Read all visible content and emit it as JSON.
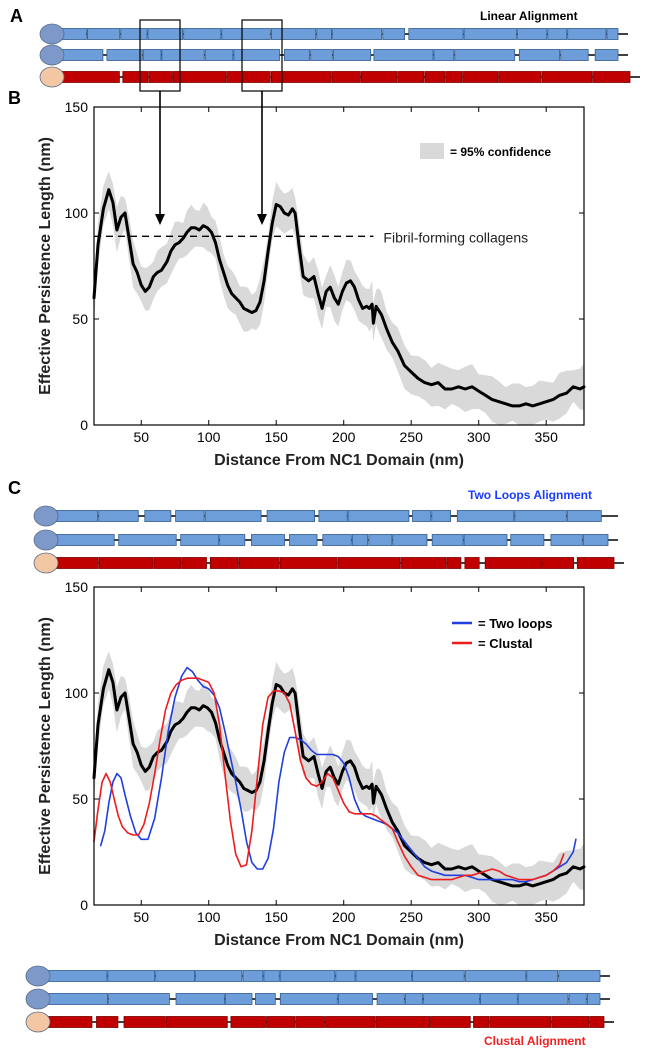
{
  "colors": {
    "blue_fill": "#6d9eda",
    "blue_stroke": "#2f5c8f",
    "red_fill": "#c00000",
    "red_stroke": "#7a0000",
    "oval_blue": "#7c99c9",
    "oval_peach": "#f4c7a4",
    "mean_line": "#000000",
    "ci_band": "#d9d9d9",
    "two_loops": "#1f3fe0",
    "clustal": "#ee1c1c",
    "two_loops_title": "#1a3cff",
    "clustal_title": "#ee2222"
  },
  "panels": {
    "A": "A",
    "B": "B",
    "C": "C"
  },
  "alignments": {
    "linear_title": "Linear Alignment",
    "two_loops_title": "Two Loops Alignment",
    "clustal_title": "Clustal Alignment"
  },
  "chart_data": [
    {
      "type": "line",
      "panel": "B",
      "xlabel": "Distance From NC1 Domain (nm)",
      "ylabel": "Effective Persistence Length (nm)",
      "xlim": [
        15,
        378
      ],
      "ylim": [
        0,
        150
      ],
      "xticks": [
        50,
        100,
        150,
        200,
        250,
        300,
        350
      ],
      "yticks": [
        0,
        50,
        100,
        150
      ],
      "legend": {
        "label": "= 95% confidence",
        "placement": "top-right"
      },
      "reference_line": {
        "y": 89,
        "x": [
          15,
          222
        ],
        "label": "Fibril-forming collagens"
      },
      "series": [
        {
          "x": [
            15,
            18,
            22,
            26,
            29,
            32,
            35,
            38,
            41,
            44,
            47,
            50,
            53,
            56,
            59,
            62,
            65,
            69,
            72,
            75,
            78,
            81,
            84,
            87,
            90,
            93,
            96,
            99,
            102,
            105,
            108,
            111,
            114,
            117,
            120,
            123,
            126,
            129,
            132,
            135,
            138,
            141,
            144,
            147,
            150,
            153,
            156,
            159,
            162,
            164,
            167,
            170,
            174,
            178,
            181,
            184,
            187,
            190,
            193,
            196,
            199,
            202,
            205,
            208,
            211,
            214,
            217,
            219,
            221,
            222,
            224,
            226,
            228,
            232,
            236,
            240,
            245,
            250,
            255,
            260,
            265,
            270,
            275,
            280,
            285,
            290,
            295,
            300,
            305,
            310,
            315,
            320,
            325,
            330,
            335,
            340,
            345,
            350,
            355,
            360,
            365,
            370,
            375,
            378
          ],
          "values": [
            60,
            85,
            102,
            111,
            105,
            92,
            98,
            100,
            88,
            76,
            72,
            66,
            63,
            65,
            70,
            72,
            73,
            77,
            82,
            85,
            86,
            88,
            91,
            93,
            93,
            92,
            94,
            93,
            91,
            86,
            78,
            72,
            66,
            62,
            60,
            58,
            55,
            54,
            53,
            54,
            58,
            68,
            82,
            95,
            104,
            103,
            100,
            99,
            102,
            100,
            84,
            70,
            68,
            70,
            62,
            55,
            63,
            65,
            60,
            57,
            63,
            67,
            68,
            65,
            59,
            55,
            56,
            55,
            57,
            48,
            56,
            54,
            52,
            45,
            39,
            35,
            28,
            25,
            22,
            20,
            19,
            20,
            17,
            17,
            18,
            17,
            18,
            16,
            14,
            12,
            11,
            10,
            9,
            9,
            10,
            9,
            10,
            11,
            12,
            14,
            15,
            18,
            17,
            18
          ]
        }
      ]
    },
    {
      "type": "line",
      "panel": "C",
      "xlabel": "Distance From NC1 Domain (nm)",
      "ylabel": "Effective Persistence Length (nm)",
      "xlim": [
        15,
        378
      ],
      "ylim": [
        0,
        150
      ],
      "xticks": [
        50,
        100,
        150,
        200,
        250,
        300,
        350
      ],
      "yticks": [
        0,
        50,
        100,
        150
      ],
      "legend": {
        "placement": "top-right",
        "entries": [
          "= Two loops",
          "= Clustal"
        ]
      },
      "series": [
        {
          "style": "mean_with_ci",
          "x": [
            15,
            18,
            22,
            26,
            29,
            32,
            35,
            38,
            41,
            44,
            47,
            50,
            53,
            56,
            59,
            62,
            65,
            69,
            72,
            75,
            78,
            81,
            84,
            87,
            90,
            93,
            96,
            99,
            102,
            105,
            108,
            111,
            114,
            117,
            120,
            123,
            126,
            129,
            132,
            135,
            138,
            141,
            144,
            147,
            150,
            153,
            156,
            159,
            162,
            164,
            167,
            170,
            174,
            178,
            181,
            184,
            187,
            190,
            193,
            196,
            199,
            202,
            205,
            208,
            211,
            214,
            217,
            219,
            221,
            222,
            224,
            226,
            228,
            232,
            236,
            240,
            245,
            250,
            255,
            260,
            265,
            270,
            275,
            280,
            285,
            290,
            295,
            300,
            305,
            310,
            315,
            320,
            325,
            330,
            335,
            340,
            345,
            350,
            355,
            360,
            365,
            370,
            375,
            378
          ],
          "values": [
            60,
            85,
            102,
            111,
            105,
            92,
            98,
            100,
            88,
            76,
            72,
            66,
            63,
            65,
            70,
            72,
            73,
            77,
            82,
            85,
            86,
            88,
            91,
            93,
            93,
            92,
            94,
            93,
            91,
            86,
            78,
            72,
            66,
            62,
            60,
            58,
            55,
            54,
            53,
            54,
            58,
            68,
            82,
            95,
            104,
            103,
            100,
            99,
            102,
            100,
            84,
            70,
            68,
            70,
            62,
            55,
            63,
            65,
            60,
            57,
            63,
            67,
            68,
            65,
            59,
            55,
            56,
            55,
            57,
            48,
            56,
            54,
            52,
            45,
            39,
            35,
            28,
            25,
            22,
            20,
            19,
            20,
            17,
            17,
            18,
            17,
            18,
            16,
            14,
            12,
            11,
            10,
            9,
            9,
            10,
            9,
            10,
            11,
            12,
            14,
            15,
            18,
            17,
            18
          ]
        },
        {
          "name": "Two loops",
          "color_key": "two_loops",
          "x": [
            20,
            23,
            26,
            29,
            32,
            35,
            38,
            42,
            46,
            50,
            55,
            60,
            65,
            70,
            75,
            80,
            84,
            88,
            92,
            96,
            100,
            104,
            108,
            112,
            116,
            120,
            124,
            128,
            132,
            136,
            140,
            144,
            148,
            152,
            156,
            160,
            164,
            168,
            172,
            176,
            180,
            184,
            188,
            192,
            196,
            200,
            204,
            208,
            212,
            216,
            220,
            224,
            228,
            232,
            236,
            240,
            245,
            250,
            255,
            260,
            265,
            270,
            275,
            280,
            285,
            290,
            295,
            300,
            305,
            310,
            315,
            320,
            325,
            330,
            335,
            340,
            345,
            350,
            355,
            360,
            365,
            370,
            372
          ],
          "values": [
            28,
            35,
            48,
            58,
            62,
            60,
            52,
            42,
            34,
            31,
            31,
            41,
            60,
            82,
            98,
            108,
            112,
            110,
            106,
            103,
            102,
            99,
            93,
            82,
            70,
            58,
            45,
            30,
            20,
            17,
            17,
            22,
            36,
            58,
            72,
            79,
            79,
            78,
            76,
            73,
            71,
            71,
            71,
            71,
            70,
            67,
            60,
            50,
            44,
            42,
            41,
            40,
            39,
            38,
            36,
            34,
            30,
            26,
            22,
            18,
            16,
            15,
            14,
            14,
            14,
            14,
            13,
            12,
            12,
            12,
            12,
            12,
            12,
            11,
            11,
            12,
            13,
            14,
            16,
            18,
            20,
            25,
            31
          ]
        },
        {
          "name": "Clustal",
          "color_key": "clustal",
          "x": [
            15,
            18,
            21,
            24,
            27,
            30,
            33,
            36,
            40,
            44,
            48,
            52,
            56,
            60,
            64,
            68,
            72,
            76,
            80,
            84,
            88,
            92,
            96,
            100,
            104,
            108,
            112,
            116,
            120,
            124,
            128,
            132,
            136,
            140,
            144,
            148,
            152,
            156,
            160,
            164,
            168,
            172,
            176,
            180,
            184,
            188,
            192,
            196,
            200,
            204,
            208,
            212,
            216,
            220,
            224,
            228,
            232,
            236,
            240,
            245,
            250,
            255,
            260,
            265,
            270,
            275,
            280,
            285,
            290,
            295,
            300,
            305,
            310,
            315,
            320,
            325,
            330,
            335,
            340,
            345,
            350,
            355,
            360,
            363
          ],
          "values": [
            30,
            45,
            58,
            62,
            58,
            50,
            42,
            37,
            34,
            33,
            33,
            38,
            48,
            62,
            78,
            92,
            100,
            104,
            106,
            107,
            107,
            107,
            106,
            105,
            100,
            85,
            62,
            40,
            24,
            18,
            19,
            35,
            60,
            85,
            98,
            101,
            101,
            100,
            95,
            82,
            68,
            60,
            57,
            56,
            58,
            62,
            60,
            54,
            48,
            44,
            43,
            43,
            43,
            43,
            42,
            40,
            38,
            36,
            30,
            23,
            18,
            14,
            13,
            12,
            12,
            12,
            12,
            13,
            14,
            14,
            15,
            16,
            17,
            16,
            14,
            13,
            12,
            12,
            12,
            13,
            14,
            16,
            19,
            24
          ]
        }
      ]
    }
  ]
}
